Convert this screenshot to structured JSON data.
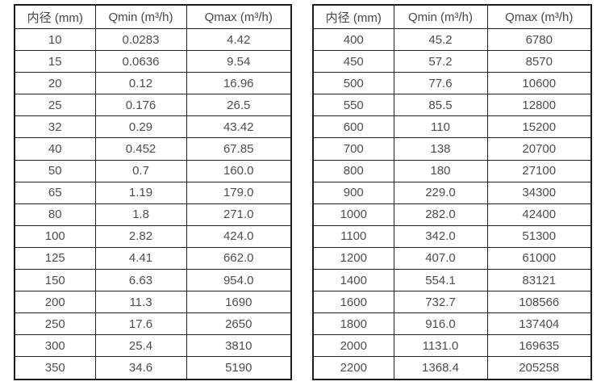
{
  "table_left": {
    "headers": [
      "内径 (mm)",
      "Qmin (m³/h)",
      "Qmax (m³/h)"
    ],
    "rows": [
      [
        "10",
        "0.0283",
        "4.42"
      ],
      [
        "15",
        "0.0636",
        "9.54"
      ],
      [
        "20",
        "0.12",
        "16.96"
      ],
      [
        "25",
        "0.176",
        "26.5"
      ],
      [
        "32",
        "0.29",
        "43.42"
      ],
      [
        "40",
        "0.452",
        "67.85"
      ],
      [
        "50",
        "0.7",
        "160.0"
      ],
      [
        "65",
        "1.19",
        "179.0"
      ],
      [
        "80",
        "1.8",
        "271.0"
      ],
      [
        "100",
        "2.82",
        "424.0"
      ],
      [
        "125",
        "4.41",
        "662.0"
      ],
      [
        "150",
        "6.63",
        "954.0"
      ],
      [
        "200",
        "11.3",
        "1690"
      ],
      [
        "250",
        "17.6",
        "2650"
      ],
      [
        "300",
        "25.4",
        "3810"
      ],
      [
        "350",
        "34.6",
        "5190"
      ]
    ]
  },
  "table_right": {
    "headers": [
      "内径 (mm)",
      "Qmin (m³/h)",
      "Qmax (m³/h)"
    ],
    "rows": [
      [
        "400",
        "45.2",
        "6780"
      ],
      [
        "450",
        "57.2",
        "8570"
      ],
      [
        "500",
        "77.6",
        "10600"
      ],
      [
        "550",
        "85.5",
        "12800"
      ],
      [
        "600",
        "110",
        "15200"
      ],
      [
        "700",
        "138",
        "20700"
      ],
      [
        "800",
        "180",
        "27100"
      ],
      [
        "900",
        "229.0",
        "34300"
      ],
      [
        "1000",
        "282.0",
        "42400"
      ],
      [
        "1100",
        "342.0",
        "51300"
      ],
      [
        "1200",
        "407.0",
        "61000"
      ],
      [
        "1400",
        "554.1",
        "83121"
      ],
      [
        "1600",
        "732.7",
        "108566"
      ],
      [
        "1800",
        "916.0",
        "137404"
      ],
      [
        "2000",
        "1131.0",
        "169635"
      ],
      [
        "2200",
        "1368.4",
        "205258"
      ]
    ]
  },
  "colors": {
    "border": "#1d1d1d",
    "text": "#4d4d4d",
    "background": "#ffffff"
  }
}
